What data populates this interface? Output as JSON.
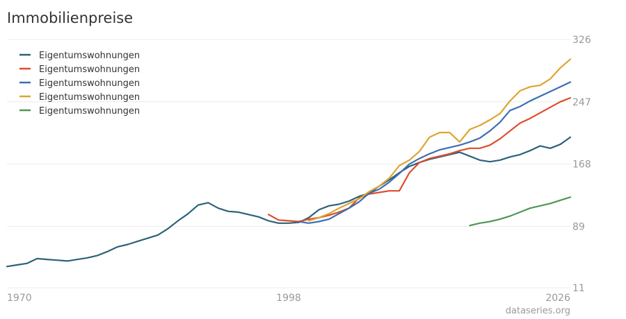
{
  "page": {
    "title": "Immobilienpreise",
    "source": "dataseries.org"
  },
  "chart_data": {
    "type": "line",
    "title": "Immobilienpreise",
    "xlabel": "",
    "ylabel": "",
    "xlim": [
      1970,
      2026
    ],
    "ylim": [
      11,
      326
    ],
    "x_ticks": [
      "1970",
      "1998",
      "2026"
    ],
    "y_ticks": [
      326,
      247,
      168,
      89,
      11
    ],
    "grid": "horizontal",
    "legend_position": "top-left",
    "series": [
      {
        "name": "Eigentumswohnungen",
        "color": "#2c6179",
        "x": [
          1970,
          1971,
          1972,
          1973,
          1974,
          1975,
          1976,
          1977,
          1978,
          1979,
          1980,
          1981,
          1982,
          1983,
          1984,
          1985,
          1986,
          1987,
          1988,
          1989,
          1990,
          1991,
          1992,
          1993,
          1994,
          1995,
          1996,
          1997,
          1998,
          1999,
          2000,
          2001,
          2002,
          2003,
          2004,
          2005,
          2006,
          2007,
          2008,
          2009,
          2010,
          2011,
          2012,
          2013,
          2014,
          2015,
          2016,
          2017,
          2018,
          2019,
          2020,
          2021,
          2022,
          2023,
          2024,
          2025,
          2026
        ],
        "values": [
          38,
          40,
          42,
          48,
          47,
          46,
          45,
          47,
          49,
          52,
          57,
          63,
          66,
          70,
          74,
          78,
          86,
          96,
          105,
          116,
          119,
          112,
          108,
          107,
          104,
          101,
          96,
          93,
          93,
          94,
          100,
          110,
          115,
          117,
          121,
          127,
          131,
          140,
          148,
          157,
          165,
          170,
          174,
          177,
          180,
          183,
          178,
          173,
          171,
          173,
          177,
          180,
          185,
          191,
          188,
          193,
          202
        ]
      },
      {
        "name": "Eigentumswohnungen",
        "color": "#de4c2b",
        "x": [
          1996,
          1997,
          1998,
          1999,
          2000,
          2001,
          2002,
          2003,
          2004,
          2005,
          2006,
          2007,
          2008,
          2009,
          2010,
          2011,
          2012,
          2013,
          2014,
          2015,
          2016,
          2017,
          2018,
          2019,
          2020,
          2021,
          2022,
          2023,
          2024,
          2025,
          2026
        ],
        "values": [
          104,
          97,
          96,
          95,
          98,
          100,
          103,
          107,
          112,
          125,
          130,
          132,
          134,
          134,
          157,
          170,
          175,
          178,
          181,
          185,
          188,
          188,
          192,
          200,
          210,
          220,
          226,
          233,
          240,
          247,
          252
        ]
      },
      {
        "name": "Eigentumswohnungen",
        "color": "#3a6eb4",
        "x": [
          1999,
          2000,
          2001,
          2002,
          2003,
          2004,
          2005,
          2006,
          2007,
          2008,
          2009,
          2010,
          2011,
          2012,
          2013,
          2014,
          2015,
          2016,
          2017,
          2018,
          2019,
          2020,
          2021,
          2022,
          2023,
          2024,
          2025,
          2026
        ],
        "values": [
          95,
          93,
          95,
          98,
          105,
          112,
          120,
          131,
          136,
          145,
          156,
          168,
          175,
          181,
          186,
          189,
          192,
          196,
          201,
          210,
          221,
          236,
          241,
          248,
          254,
          260,
          266,
          272
        ]
      },
      {
        "name": "Eigentumswohnungen",
        "color": "#dca531",
        "x": [
          2000,
          2001,
          2002,
          2003,
          2004,
          2005,
          2006,
          2007,
          2008,
          2009,
          2010,
          2011,
          2012,
          2013,
          2014,
          2015,
          2016,
          2017,
          2018,
          2019,
          2020,
          2021,
          2022,
          2023,
          2024,
          2025,
          2026
        ],
        "values": [
          96,
          100,
          105,
          112,
          118,
          124,
          133,
          140,
          150,
          166,
          173,
          184,
          202,
          208,
          208,
          196,
          212,
          217,
          224,
          232,
          248,
          261,
          266,
          268,
          276,
          290,
          301
        ]
      },
      {
        "name": "Eigentumswohnungen",
        "color": "#4f9653",
        "x": [
          2016,
          2017,
          2018,
          2019,
          2020,
          2021,
          2022,
          2023,
          2024,
          2025,
          2026
        ],
        "values": [
          90,
          93,
          95,
          98,
          102,
          107,
          112,
          115,
          118,
          122,
          126
        ]
      }
    ]
  }
}
